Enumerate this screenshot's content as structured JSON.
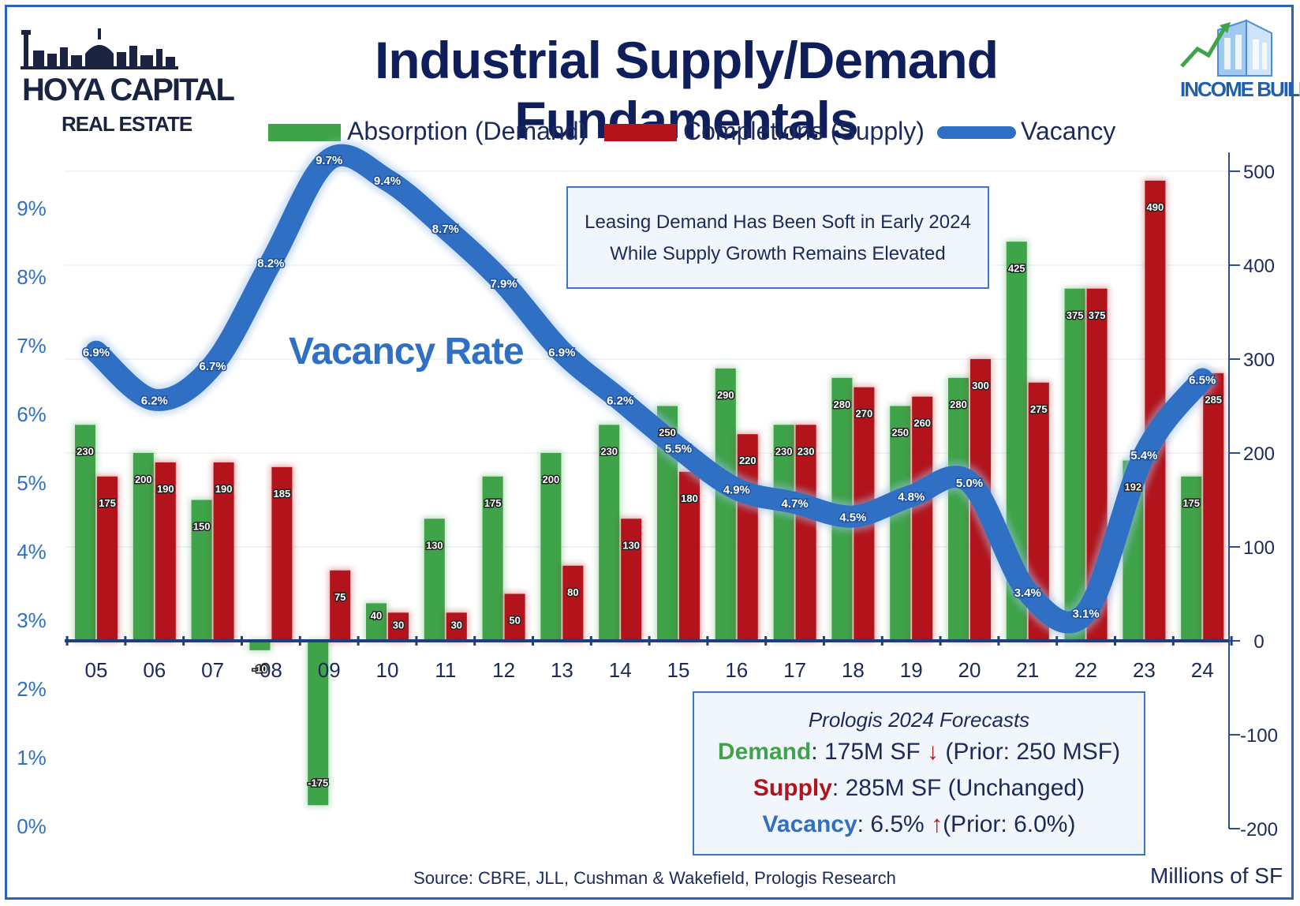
{
  "title": "Industrial Supply/Demand Fundamentals",
  "logo_left": {
    "line1": "HOYA CAPITAL",
    "line2": "REAL ESTATE"
  },
  "logo_right": {
    "text": "INCOME BUILDER"
  },
  "chart_data": {
    "type": "bar",
    "title": "Industrial Supply/Demand Fundamentals",
    "categories": [
      "05",
      "06",
      "07",
      "08",
      "09",
      "10",
      "11",
      "12",
      "13",
      "14",
      "15",
      "16",
      "17",
      "18",
      "19",
      "20",
      "21",
      "22",
      "23",
      "24"
    ],
    "series": [
      {
        "name": "Absorption (Demand)",
        "axis": "right",
        "color": "#3fa34a",
        "values": [
          230,
          200,
          150,
          -10,
          -175,
          40,
          130,
          175,
          200,
          230,
          250,
          290,
          230,
          280,
          250,
          280,
          425,
          375,
          192,
          175
        ],
        "labels": [
          "230",
          "200",
          "150",
          "-10",
          "-175",
          "40",
          "130",
          "175",
          "200",
          "230",
          "250",
          "290",
          "230",
          "280",
          "250",
          "280",
          "425",
          "375",
          "192",
          "175"
        ]
      },
      {
        "name": "Completions (Supply)",
        "axis": "right",
        "color": "#b3141b",
        "values": [
          175,
          190,
          190,
          185,
          75,
          30,
          30,
          50,
          80,
          130,
          180,
          220,
          230,
          270,
          260,
          300,
          275,
          375,
          490,
          285
        ],
        "labels": [
          "175",
          "190",
          "190",
          "185",
          "75",
          "30",
          "30",
          "50",
          "80",
          "130",
          "180",
          "220",
          "230",
          "270",
          "260",
          "300",
          "275",
          "375",
          "490",
          "285"
        ]
      },
      {
        "name": "Vacancy",
        "axis": "left",
        "type": "line",
        "color": "#2f6fc4",
        "values": [
          6.9,
          6.2,
          6.7,
          8.2,
          9.7,
          9.4,
          8.7,
          7.9,
          6.9,
          6.2,
          5.5,
          4.9,
          4.7,
          4.5,
          4.8,
          5.0,
          3.4,
          3.1,
          5.4,
          6.5
        ],
        "labels": [
          "6.9%",
          "6.2%",
          "6.7%",
          "8.2%",
          "9.7%",
          "9.4%",
          "8.7%",
          "7.9%",
          "6.9%",
          "6.2%",
          "5.5%",
          "4.9%",
          "4.7%",
          "4.5%",
          "4.8%",
          "5.0%",
          "3.4%",
          "3.1%",
          "5.4%",
          "6.5%"
        ]
      }
    ],
    "y_left": {
      "ylim": [
        0,
        10
      ],
      "ticks": [
        "0%",
        "1%",
        "2%",
        "3%",
        "4%",
        "5%",
        "6%",
        "7%",
        "8%",
        "9%"
      ],
      "tick_values": [
        0,
        1,
        2,
        3,
        4,
        5,
        6,
        7,
        8,
        9
      ]
    },
    "y_right": {
      "ylim": [
        -200,
        500
      ],
      "ticks": [
        "-200",
        "-100",
        "0",
        "100",
        "200",
        "300",
        "400",
        "500"
      ],
      "tick_values": [
        -200,
        -100,
        0,
        100,
        200,
        300,
        400,
        500
      ]
    },
    "xlabel": "",
    "ylabel_right": "Millions of SF",
    "line_label": "Vacancy Rate",
    "legend_position": "top"
  },
  "legend": {
    "absorption": "Absorption (Demand)",
    "completions": "Completions (Supply)",
    "vacancy": "Vacancy"
  },
  "note_box": {
    "line1": "Leasing Demand Has Been Soft in Early 2024",
    "line2": "While Supply Growth Remains Elevated"
  },
  "forecast_box": {
    "heading": "Prologis 2024 Forecasts",
    "demand_label": "Demand",
    "demand_text": ": 175M SF",
    "demand_arrow": "↓",
    "demand_prior": " (Prior: 250 MSF)",
    "supply_label": "Supply",
    "supply_text": ": 285M SF (Unchanged)",
    "vacancy_label": "Vacancy",
    "vacancy_text": ": 6.5%",
    "vacancy_arrow": "↑",
    "vacancy_prior": "(Prior: 6.0%)"
  },
  "source": "Source: CBRE, JLL, Cushman & Wakefield, Prologis Research",
  "units": "Millions of SF",
  "colors": {
    "green": "#3fa34a",
    "red": "#b3141b",
    "blue": "#2f6fc4",
    "navy": "#0f1f5c"
  }
}
